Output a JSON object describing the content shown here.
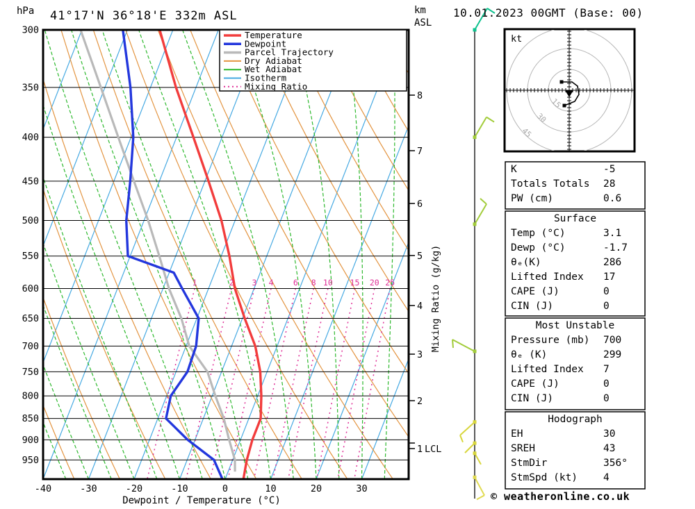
{
  "header": {
    "left_unit": "hPa",
    "title": "41°17'N 36°18'E 332m ASL",
    "right_unit_line1": "km",
    "right_unit_line2": "ASL",
    "date_title": "10.01.2023 00GMT (Base: 00)"
  },
  "axes": {
    "x_title": "Dewpoint / Temperature (°C)",
    "x_ticks": [
      -40,
      -30,
      -20,
      -10,
      0,
      10,
      20,
      30
    ],
    "pressure_ticks": [
      300,
      350,
      400,
      450,
      500,
      550,
      600,
      650,
      700,
      750,
      800,
      850,
      900,
      950
    ],
    "km_ticks": [
      8,
      7,
      6,
      5,
      4,
      3,
      2,
      1
    ],
    "lcl_label": "LCL",
    "mixing_axis_title": "Mixing Ratio (g/kg)"
  },
  "legend": {
    "items": [
      {
        "label": "Temperature",
        "color": "#f23c3c",
        "style": "thick"
      },
      {
        "label": "Dewpoint",
        "color": "#2337dd",
        "style": "thick"
      },
      {
        "label": "Parcel Trajectory",
        "color": "#b9b9b9",
        "style": "thick"
      },
      {
        "label": "Dry Adiabat",
        "color": "#e39440",
        "style": "thin"
      },
      {
        "label": "Wet Adiabat",
        "color": "#2cb82c",
        "style": "thin"
      },
      {
        "label": "Isotherm",
        "color": "#45a9e2",
        "style": "thin"
      },
      {
        "label": "Mixing Ratio",
        "color": "#df2e96",
        "style": "dotted"
      }
    ]
  },
  "chart_data": {
    "type": "skew-t log-p sounding",
    "pressure_range_hpa": [
      300,
      1000
    ],
    "temp_axis_range_c": [
      -40,
      40
    ],
    "isotherm_step_c": 10,
    "dry_adiabat_step_k": 10,
    "wet_adiabat_step_c": 5,
    "mixing_ratio_lines_gkg": [
      1,
      2,
      3,
      4,
      6,
      8,
      10,
      15,
      20,
      25
    ],
    "lcl_pressure_hpa": 912,
    "series": {
      "temperature_c": [
        [
          300,
          -52.9
        ],
        [
          350,
          -44.4
        ],
        [
          400,
          -36.3
        ],
        [
          450,
          -29.2
        ],
        [
          500,
          -23.0
        ],
        [
          550,
          -18.2
        ],
        [
          600,
          -14.2
        ],
        [
          650,
          -9.5
        ],
        [
          700,
          -4.8
        ],
        [
          750,
          -1.5
        ],
        [
          800,
          0.8
        ],
        [
          850,
          2.6
        ],
        [
          900,
          2.6
        ],
        [
          950,
          3.1
        ],
        [
          1000,
          4.0
        ]
      ],
      "dewpoint_c": [
        [
          300,
          -61.0
        ],
        [
          350,
          -54.4
        ],
        [
          400,
          -49.5
        ],
        [
          450,
          -46.4
        ],
        [
          500,
          -43.9
        ],
        [
          550,
          -40.5
        ],
        [
          575,
          -29.0
        ],
        [
          600,
          -25.8
        ],
        [
          650,
          -19.6
        ],
        [
          700,
          -17.8
        ],
        [
          750,
          -17.5
        ],
        [
          800,
          -19.1
        ],
        [
          850,
          -18.2
        ],
        [
          900,
          -11.6
        ],
        [
          950,
          -4.1
        ],
        [
          1000,
          -0.6
        ]
      ],
      "parcel_trajectory_c": [
        [
          300,
          -70.3
        ],
        [
          350,
          -60.9
        ],
        [
          400,
          -52.8
        ],
        [
          450,
          -45.6
        ],
        [
          500,
          -39.1
        ],
        [
          550,
          -33.6
        ],
        [
          600,
          -28.7
        ],
        [
          650,
          -23.4
        ],
        [
          700,
          -19.3
        ],
        [
          750,
          -13.1
        ],
        [
          800,
          -9.3
        ],
        [
          850,
          -5.5
        ],
        [
          900,
          -2.5
        ],
        [
          950,
          0.5
        ],
        [
          980,
          1.5
        ]
      ]
    },
    "wind_barbs": [
      {
        "pressure_hpa": 300,
        "color": "#0ec28e",
        "stroke": [
          18,
          -31
        ],
        "tick": [
          11,
          7
        ]
      },
      {
        "pressure_hpa": 400,
        "color": "#a2cc3a",
        "stroke": [
          17,
          -29
        ],
        "tick": [
          11,
          7
        ]
      },
      {
        "pressure_hpa": 505,
        "color": "#a2cc3a",
        "stroke": [
          17,
          -29
        ],
        "tick": [
          -9,
          -8
        ]
      },
      {
        "pressure_hpa": 710,
        "color": "#a2cc3a",
        "stroke": [
          -32,
          -17
        ],
        "tick": [
          1,
          12
        ]
      },
      {
        "pressure_hpa": 858,
        "color": "#d8d63c",
        "stroke": [
          -21,
          19
        ],
        "tick": [
          4,
          10
        ]
      },
      {
        "pressure_hpa": 908,
        "color": "#d8d63c",
        "stroke": [
          -14,
          14
        ],
        "tick": null
      },
      {
        "pressure_hpa": 933,
        "color": "#d8d63c",
        "stroke": [
          9,
          16
        ],
        "tick": null
      },
      {
        "pressure_hpa": 995,
        "color": "#e0da50",
        "stroke": [
          14,
          26
        ],
        "tick": [
          -11,
          6
        ]
      }
    ]
  },
  "hodograph": {
    "unit_label": "kt",
    "rings_kt": [
      15,
      30,
      45
    ],
    "trace_kt": [
      [
        -5.5,
        -6
      ],
      [
        2,
        -6
      ],
      [
        6,
        -3
      ],
      [
        7,
        3
      ],
      [
        4,
        8
      ],
      [
        -3.5,
        11
      ]
    ],
    "storm_marker_kt": [
      0,
      2
    ]
  },
  "panels": [
    {
      "title": "",
      "rows": [
        [
          "K",
          "-5"
        ],
        [
          "Totals Totals",
          "28"
        ],
        [
          "PW (cm)",
          "0.6"
        ]
      ]
    },
    {
      "title": "Surface",
      "rows": [
        [
          "Temp (°C)",
          "3.1"
        ],
        [
          "Dewp (°C)",
          "-1.7"
        ],
        [
          "θₑ(K)",
          "286"
        ],
        [
          "Lifted Index",
          "17"
        ],
        [
          "CAPE (J)",
          "0"
        ],
        [
          "CIN (J)",
          "0"
        ]
      ]
    },
    {
      "title": "Most Unstable",
      "rows": [
        [
          "Pressure (mb)",
          "700"
        ],
        [
          "θₑ (K)",
          "299"
        ],
        [
          "Lifted Index",
          "7"
        ],
        [
          "CAPE (J)",
          "0"
        ],
        [
          "CIN (J)",
          "0"
        ]
      ]
    },
    {
      "title": "Hodograph",
      "rows": [
        [
          "EH",
          "30"
        ],
        [
          "SREH",
          "43"
        ],
        [
          "StmDir",
          "356°"
        ],
        [
          "StmSpd (kt)",
          "4"
        ]
      ]
    }
  ],
  "footer": {
    "copyright": "© weatheronline.co.uk"
  }
}
